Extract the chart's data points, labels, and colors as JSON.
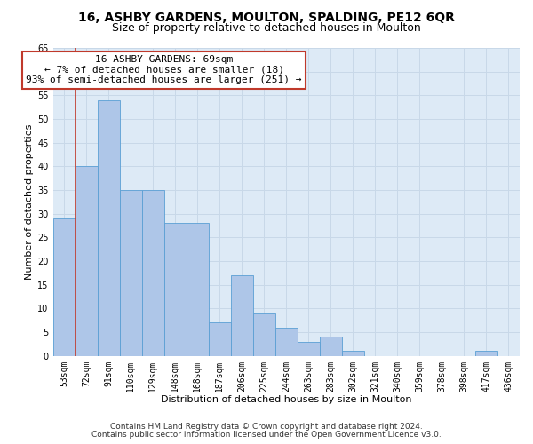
{
  "title_line1": "16, ASHBY GARDENS, MOULTON, SPALDING, PE12 6QR",
  "title_line2": "Size of property relative to detached houses in Moulton",
  "xlabel": "Distribution of detached houses by size in Moulton",
  "ylabel": "Number of detached properties",
  "bar_labels": [
    "53sqm",
    "72sqm",
    "91sqm",
    "110sqm",
    "129sqm",
    "148sqm",
    "168sqm",
    "187sqm",
    "206sqm",
    "225sqm",
    "244sqm",
    "263sqm",
    "283sqm",
    "302sqm",
    "321sqm",
    "340sqm",
    "359sqm",
    "378sqm",
    "398sqm",
    "417sqm",
    "436sqm"
  ],
  "bar_values": [
    29,
    40,
    54,
    35,
    35,
    28,
    28,
    7,
    17,
    9,
    6,
    3,
    4,
    1,
    0,
    0,
    0,
    0,
    0,
    1,
    0
  ],
  "bar_color": "#aec6e8",
  "bar_edge_color": "#5a9fd4",
  "vline_color": "#c0392b",
  "vline_x_index": 1,
  "annotation_text": "16 ASHBY GARDENS: 69sqm\n← 7% of detached houses are smaller (18)\n93% of semi-detached houses are larger (251) →",
  "annotation_box_facecolor": "#ffffff",
  "annotation_box_edgecolor": "#c0392b",
  "ylim": [
    0,
    65
  ],
  "yticks": [
    0,
    5,
    10,
    15,
    20,
    25,
    30,
    35,
    40,
    45,
    50,
    55,
    60,
    65
  ],
  "grid_color": "#c8d8e8",
  "background_color": "#ddeaf6",
  "footer_line1": "Contains HM Land Registry data © Crown copyright and database right 2024.",
  "footer_line2": "Contains public sector information licensed under the Open Government Licence v3.0.",
  "title_fontsize": 10,
  "subtitle_fontsize": 9,
  "axis_label_fontsize": 8,
  "tick_fontsize": 7,
  "annotation_fontsize": 8,
  "footer_fontsize": 6.5
}
